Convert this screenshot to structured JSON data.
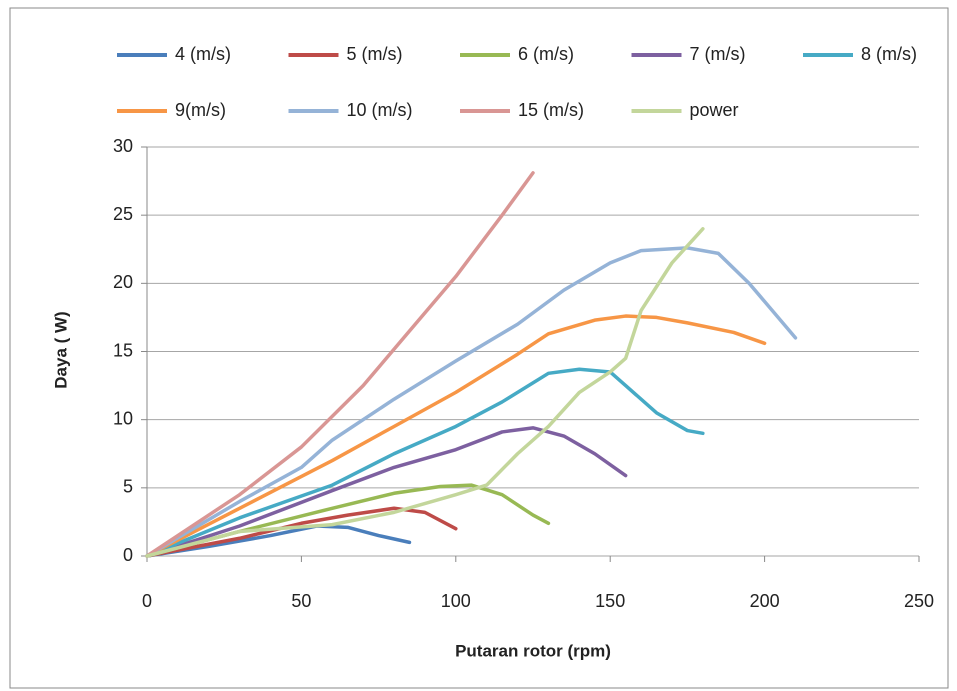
{
  "chart_data": {
    "type": "line",
    "x_label": "Putaran  rotor (rpm)",
    "y_label": "Daya ( W)",
    "xlim": [
      0,
      250
    ],
    "xticks": [
      0,
      50,
      100,
      150,
      200,
      250
    ],
    "ylim": [
      0,
      30
    ],
    "yticks": [
      0,
      5,
      10,
      15,
      20,
      25,
      30
    ],
    "grid": true,
    "legend": "top",
    "series": [
      {
        "name": "4 (m/s)",
        "color": "#4a7ebb",
        "x": [
          0,
          20,
          40,
          55,
          65,
          75,
          85
        ],
        "values": [
          0,
          0.7,
          1.5,
          2.2,
          2.1,
          1.5,
          1.0
        ]
      },
      {
        "name": "5 (m/s)",
        "color": "#be4b48",
        "x": [
          0,
          30,
          50,
          65,
          80,
          90,
          100
        ],
        "values": [
          0,
          1.3,
          2.4,
          3.0,
          3.5,
          3.2,
          2.0
        ]
      },
      {
        "name": "6 (m/s)",
        "color": "#98b954",
        "x": [
          0,
          30,
          60,
          80,
          95,
          105,
          115,
          125,
          130
        ],
        "values": [
          0,
          1.8,
          3.5,
          4.6,
          5.1,
          5.2,
          4.5,
          3.0,
          2.4
        ]
      },
      {
        "name": "7 (m/s)",
        "color": "#7d60a0",
        "x": [
          0,
          30,
          60,
          80,
          100,
          115,
          125,
          135,
          145,
          155
        ],
        "values": [
          0,
          2.2,
          4.8,
          6.5,
          7.8,
          9.1,
          9.4,
          8.8,
          7.5,
          5.9
        ]
      },
      {
        "name": "8 (m/s)",
        "color": "#46aac5",
        "x": [
          0,
          30,
          60,
          80,
          100,
          115,
          130,
          140,
          150,
          155,
          165,
          175,
          180
        ],
        "values": [
          0,
          2.8,
          5.2,
          7.5,
          9.5,
          11.3,
          13.4,
          13.7,
          13.5,
          12.5,
          10.5,
          9.2,
          9.0
        ]
      },
      {
        "name": "9(m/s)",
        "color": "#f79646",
        "x": [
          0,
          30,
          60,
          80,
          100,
          120,
          130,
          145,
          155,
          165,
          175,
          190,
          200
        ],
        "values": [
          0,
          3.5,
          7.0,
          9.5,
          12.0,
          14.8,
          16.3,
          17.3,
          17.6,
          17.5,
          17.1,
          16.4,
          15.6
        ]
      },
      {
        "name": "10 (m/s)",
        "color": "#95b3d7",
        "x": [
          0,
          30,
          50,
          60,
          80,
          100,
          120,
          135,
          150,
          160,
          175,
          185,
          195,
          210
        ],
        "values": [
          0,
          4.0,
          6.5,
          8.5,
          11.5,
          14.3,
          17.0,
          19.5,
          21.5,
          22.4,
          22.6,
          22.2,
          20.0,
          16.0
        ]
      },
      {
        "name": "15 (m/s)",
        "color": "#d99694",
        "x": [
          0,
          30,
          50,
          70,
          85,
          100,
          115,
          125
        ],
        "values": [
          0,
          4.5,
          8.0,
          12.5,
          16.5,
          20.5,
          25.0,
          28.1
        ]
      },
      {
        "name": "power",
        "color": "#c3d69b",
        "x": [
          0,
          30,
          60,
          80,
          100,
          110,
          120,
          130,
          140,
          150,
          155,
          160,
          170,
          180
        ],
        "values": [
          0,
          1.8,
          2.3,
          3.2,
          4.5,
          5.2,
          7.5,
          9.5,
          12.0,
          13.5,
          14.5,
          18.0,
          21.5,
          24.0
        ]
      }
    ]
  }
}
